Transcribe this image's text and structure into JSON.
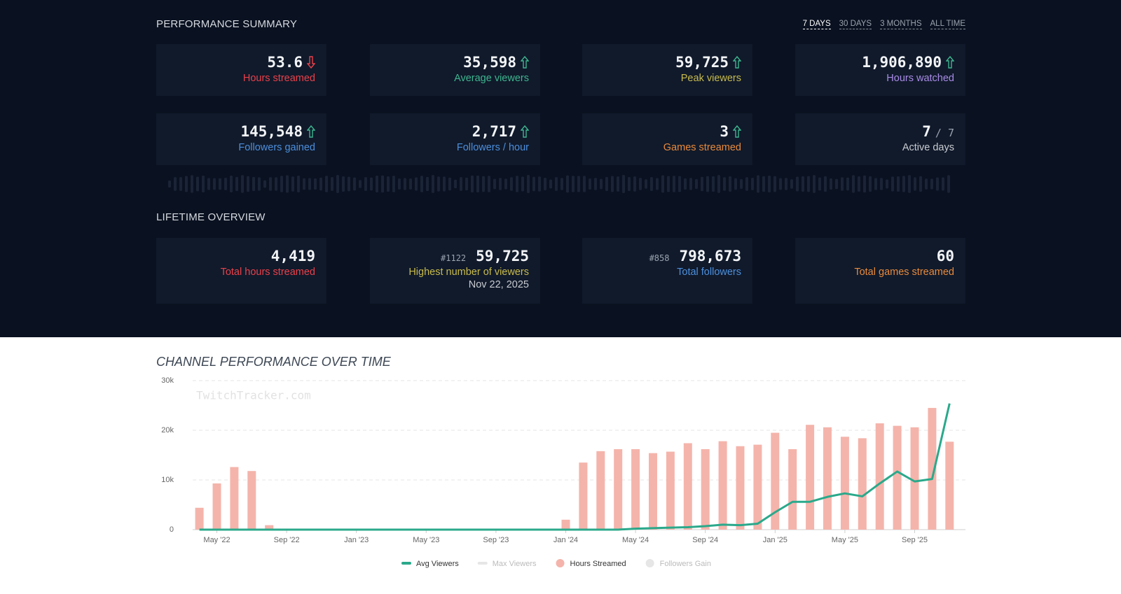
{
  "summary": {
    "title": "PERFORMANCE SUMMARY",
    "periods": [
      "7 DAYS",
      "30 DAYS",
      "3 MONTHS",
      "ALL TIME"
    ],
    "active_period": 0,
    "cards": [
      {
        "value": "53.6",
        "label": "Hours streamed",
        "trend": "down",
        "color": "#e8414a"
      },
      {
        "value": "35,598",
        "label": "Average viewers",
        "trend": "up",
        "color": "#3fb58f"
      },
      {
        "value": "59,725",
        "label": "Peak viewers",
        "trend": "up",
        "color": "#c9bb4c"
      },
      {
        "value": "1,906,890",
        "label": "Hours watched",
        "trend": "up",
        "color": "#a98be6"
      },
      {
        "value": "145,548",
        "label": "Followers gained",
        "trend": "up",
        "color": "#4d8fdc"
      },
      {
        "value": "2,717",
        "label": "Followers / hour",
        "trend": "up",
        "color": "#4d8fdc"
      },
      {
        "value": "3",
        "label": "Games streamed",
        "trend": "up",
        "color": "#e98a3c"
      },
      {
        "value": "7",
        "suffix": "/ 7",
        "label": "Active days",
        "color": "#c9ccd1"
      }
    ]
  },
  "lifetime": {
    "title": "LIFETIME OVERVIEW",
    "cards": [
      {
        "value": "4,419",
        "label": "Total hours streamed",
        "color": "#e8414a"
      },
      {
        "rank": "#1122",
        "value": "59,725",
        "label": "Highest number of viewers",
        "date": "Nov 22, 2025",
        "color": "#c9bb4c"
      },
      {
        "rank": "#858",
        "value": "798,673",
        "label": "Total followers",
        "color": "#4d8fdc"
      },
      {
        "value": "60",
        "label": "Total games streamed",
        "color": "#e98a3c"
      }
    ]
  },
  "chart_data": {
    "type": "bar-line",
    "title": "CHANNEL PERFORMANCE OVER TIME",
    "watermark": "TwitchTracker.com",
    "categories": [
      null,
      "May '22",
      null,
      null,
      null,
      "Sep '22",
      null,
      null,
      null,
      "Jan '23",
      null,
      null,
      null,
      "May '23",
      null,
      null,
      null,
      "Sep '23",
      null,
      null,
      null,
      "Jan '24",
      null,
      null,
      null,
      "May '24",
      null,
      null,
      null,
      "Sep '24",
      null,
      null,
      null,
      "Jan '25",
      null,
      null,
      null,
      "May '25",
      null,
      null,
      null,
      "Sep '25",
      null,
      null
    ],
    "ylim": [
      0,
      30000
    ],
    "yticks": [
      0,
      {
        "value": 10000,
        "label": "10k"
      },
      {
        "value": 20000,
        "label": "20k"
      },
      {
        "value": 30000,
        "label": "30k"
      }
    ],
    "grid": true,
    "series": [
      {
        "name": "Avg Viewers",
        "color": "#2aa98b",
        "kind": "line",
        "visible": true,
        "values": [
          0,
          0,
          0,
          0,
          0,
          0,
          0,
          0,
          0,
          0,
          0,
          0,
          0,
          0,
          0,
          0,
          0,
          0,
          0,
          0,
          0,
          0,
          0,
          0,
          0,
          200,
          300,
          400,
          500,
          700,
          1000,
          900,
          1200,
          3500,
          5600,
          5600,
          6600,
          7300,
          6700,
          9300,
          11700,
          9700,
          10200,
          25400
        ]
      },
      {
        "name": "Max Viewers",
        "color": "#c8c8c8",
        "kind": "line",
        "visible": false
      },
      {
        "name": "Hours Streamed",
        "color": "#f4b4ab",
        "kind": "bar",
        "visible": true,
        "values": [
          4400,
          9300,
          12600,
          11800,
          900,
          null,
          null,
          null,
          null,
          null,
          null,
          null,
          null,
          null,
          null,
          null,
          null,
          null,
          null,
          null,
          null,
          2000,
          13500,
          15800,
          16200,
          16200,
          15400,
          15700,
          17400,
          16200,
          17800,
          16800,
          17100,
          19500,
          16200,
          21100,
          20600,
          18700,
          18400,
          21400,
          20900,
          20600,
          24500,
          17700
        ]
      },
      {
        "name": "Followers Gain",
        "color": "#c8c8c8",
        "kind": "bar",
        "visible": false
      }
    ]
  }
}
